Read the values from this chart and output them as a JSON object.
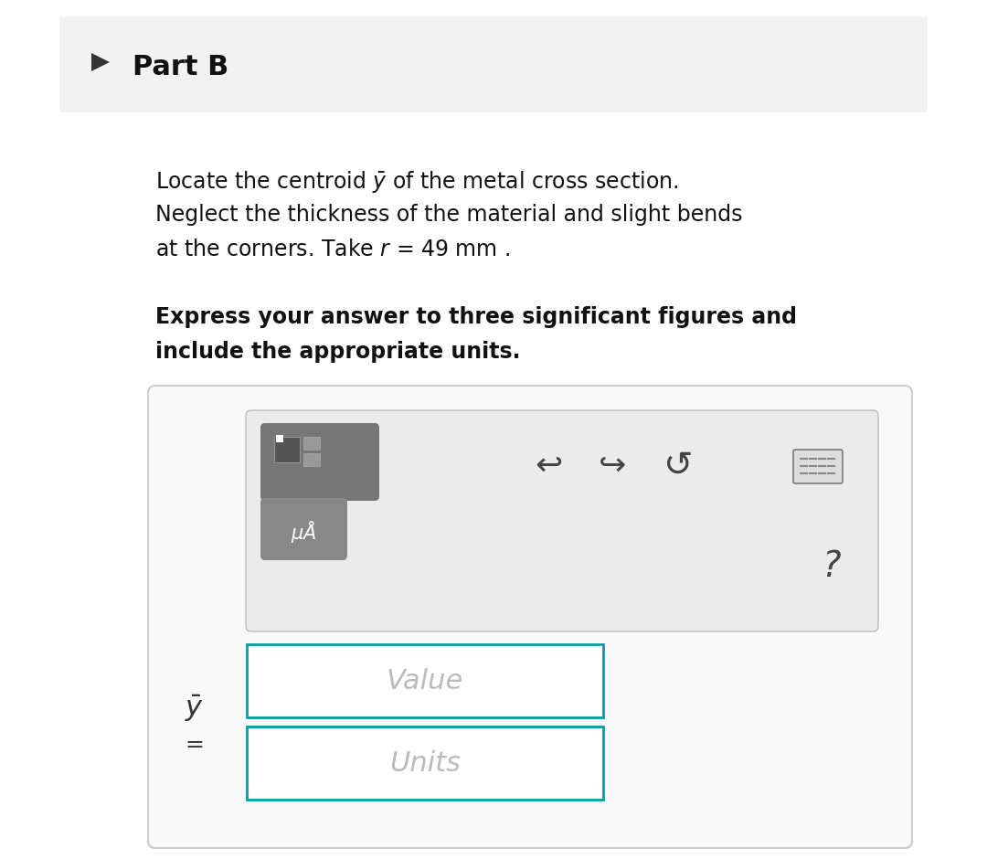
{
  "bg_color": "#ffffff",
  "header_bg": "#f2f2f2",
  "header_text": "Part B",
  "header_font_size": 22,
  "header_font_weight": "bold",
  "body_text_line1": "Locate the centroid $\\bar{y}$ of the metal cross section.",
  "body_text_line2": "Neglect the thickness of the material and slight bends",
  "body_text_line3": "at the corners. Take $r$ = 49 mm .",
  "bold_text_line1": "Express your answer to three significant figures and",
  "bold_text_line2": "include the appropriate units.",
  "body_font_size": 17,
  "bold_font_size": 17,
  "panel_bg": "#ebebeb",
  "panel_border": "#cccccc",
  "toolbar_btn_bg": "#888888",
  "value_box_border": "#00a0a0",
  "value_text": "Value",
  "units_text": "Units",
  "input_font_size": 22,
  "ybar_label": "$\\bar{y}$",
  "equals_label": "=",
  "outer_box_bg": "#f9f9f9",
  "outer_box_border": "#cccccc"
}
